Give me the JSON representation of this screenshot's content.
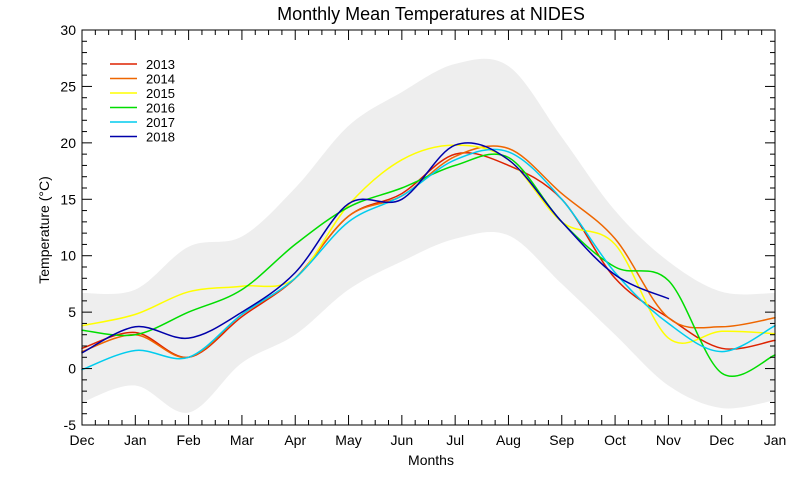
{
  "chart_data": {
    "type": "line",
    "title": "Monthly Mean Temperatures at NIDES",
    "xlabel": "Months",
    "ylabel": "Temperature (°C)",
    "ylim": [
      -5,
      30
    ],
    "yticks": [
      -5,
      0,
      5,
      10,
      15,
      20,
      25,
      30
    ],
    "xlim": [
      0,
      13
    ],
    "x_tick_labels": [
      "Dec",
      "Jan",
      "Feb",
      "Mar",
      "Apr",
      "May",
      "Jun",
      "Jul",
      "Aug",
      "Sep",
      "Oct",
      "Nov",
      "Dec",
      "Jan"
    ],
    "legend_position": "top-left",
    "envelope": {
      "color": "#eeeeee",
      "x": [
        0,
        1,
        2,
        3,
        4,
        5,
        6,
        7,
        8,
        9,
        10,
        11,
        12,
        13
      ],
      "upper": [
        6.7,
        7.0,
        10.8,
        11.7,
        16.0,
        21.5,
        24.5,
        27.0,
        26.8,
        20.5,
        14.0,
        9.5,
        6.8,
        6.7
      ],
      "lower": [
        -3.0,
        -1.5,
        -3.9,
        0.5,
        3.0,
        7.0,
        9.5,
        11.5,
        11.8,
        7.5,
        3.0,
        -1.5,
        -3.5,
        -2.8
      ]
    },
    "series": [
      {
        "name": "2013",
        "color": "#dd2200",
        "x": [
          0,
          1,
          2,
          3,
          4,
          5,
          6,
          7,
          8,
          9,
          10,
          11,
          12,
          13
        ],
        "values": [
          1.8,
          3.2,
          1.0,
          4.6,
          8.0,
          13.5,
          15.5,
          19.0,
          18.0,
          15.0,
          8.0,
          4.5,
          1.8,
          2.5
        ]
      },
      {
        "name": "2014",
        "color": "#ee6600",
        "x": [
          0,
          1,
          2,
          3,
          4,
          5,
          6,
          7,
          8,
          9,
          10,
          11,
          12,
          13
        ],
        "values": [
          1.5,
          3.0,
          1.0,
          4.8,
          8.0,
          13.5,
          15.3,
          18.8,
          19.5,
          15.5,
          11.5,
          4.5,
          3.7,
          4.5
        ]
      },
      {
        "name": "2015",
        "color": "#ffff00",
        "x": [
          0,
          1,
          2,
          3,
          4,
          5,
          6,
          7,
          8,
          9,
          10,
          11,
          12,
          13
        ],
        "values": [
          3.8,
          4.8,
          6.8,
          7.3,
          8.0,
          14.5,
          18.5,
          19.8,
          18.5,
          13.0,
          11.0,
          2.7,
          3.3,
          3.1
        ]
      },
      {
        "name": "2016",
        "color": "#00dd00",
        "x": [
          0,
          1,
          2,
          3,
          4,
          5,
          6,
          7,
          8,
          9,
          10,
          11,
          12,
          13
        ],
        "values": [
          3.4,
          3.0,
          5.0,
          7.0,
          11.0,
          14.3,
          16.0,
          18.0,
          18.7,
          13.0,
          9.0,
          7.8,
          -0.4,
          1.2
        ]
      },
      {
        "name": "2017",
        "color": "#00ccee",
        "x": [
          0,
          1,
          2,
          3,
          4,
          5,
          6,
          7,
          8,
          9,
          10,
          11,
          12,
          13
        ],
        "values": [
          -0.1,
          1.6,
          1.0,
          4.8,
          8.0,
          13.0,
          15.3,
          18.5,
          19.2,
          15.0,
          8.5,
          4.0,
          1.5,
          3.8
        ]
      },
      {
        "name": "2018",
        "color": "#0000aa",
        "x": [
          0,
          1,
          2,
          3,
          4,
          5,
          6,
          7,
          8,
          9,
          10,
          11
        ],
        "values": [
          1.4,
          3.7,
          2.7,
          5.0,
          8.5,
          14.6,
          15.0,
          19.8,
          18.5,
          13.0,
          8.3,
          6.2
        ]
      }
    ]
  }
}
